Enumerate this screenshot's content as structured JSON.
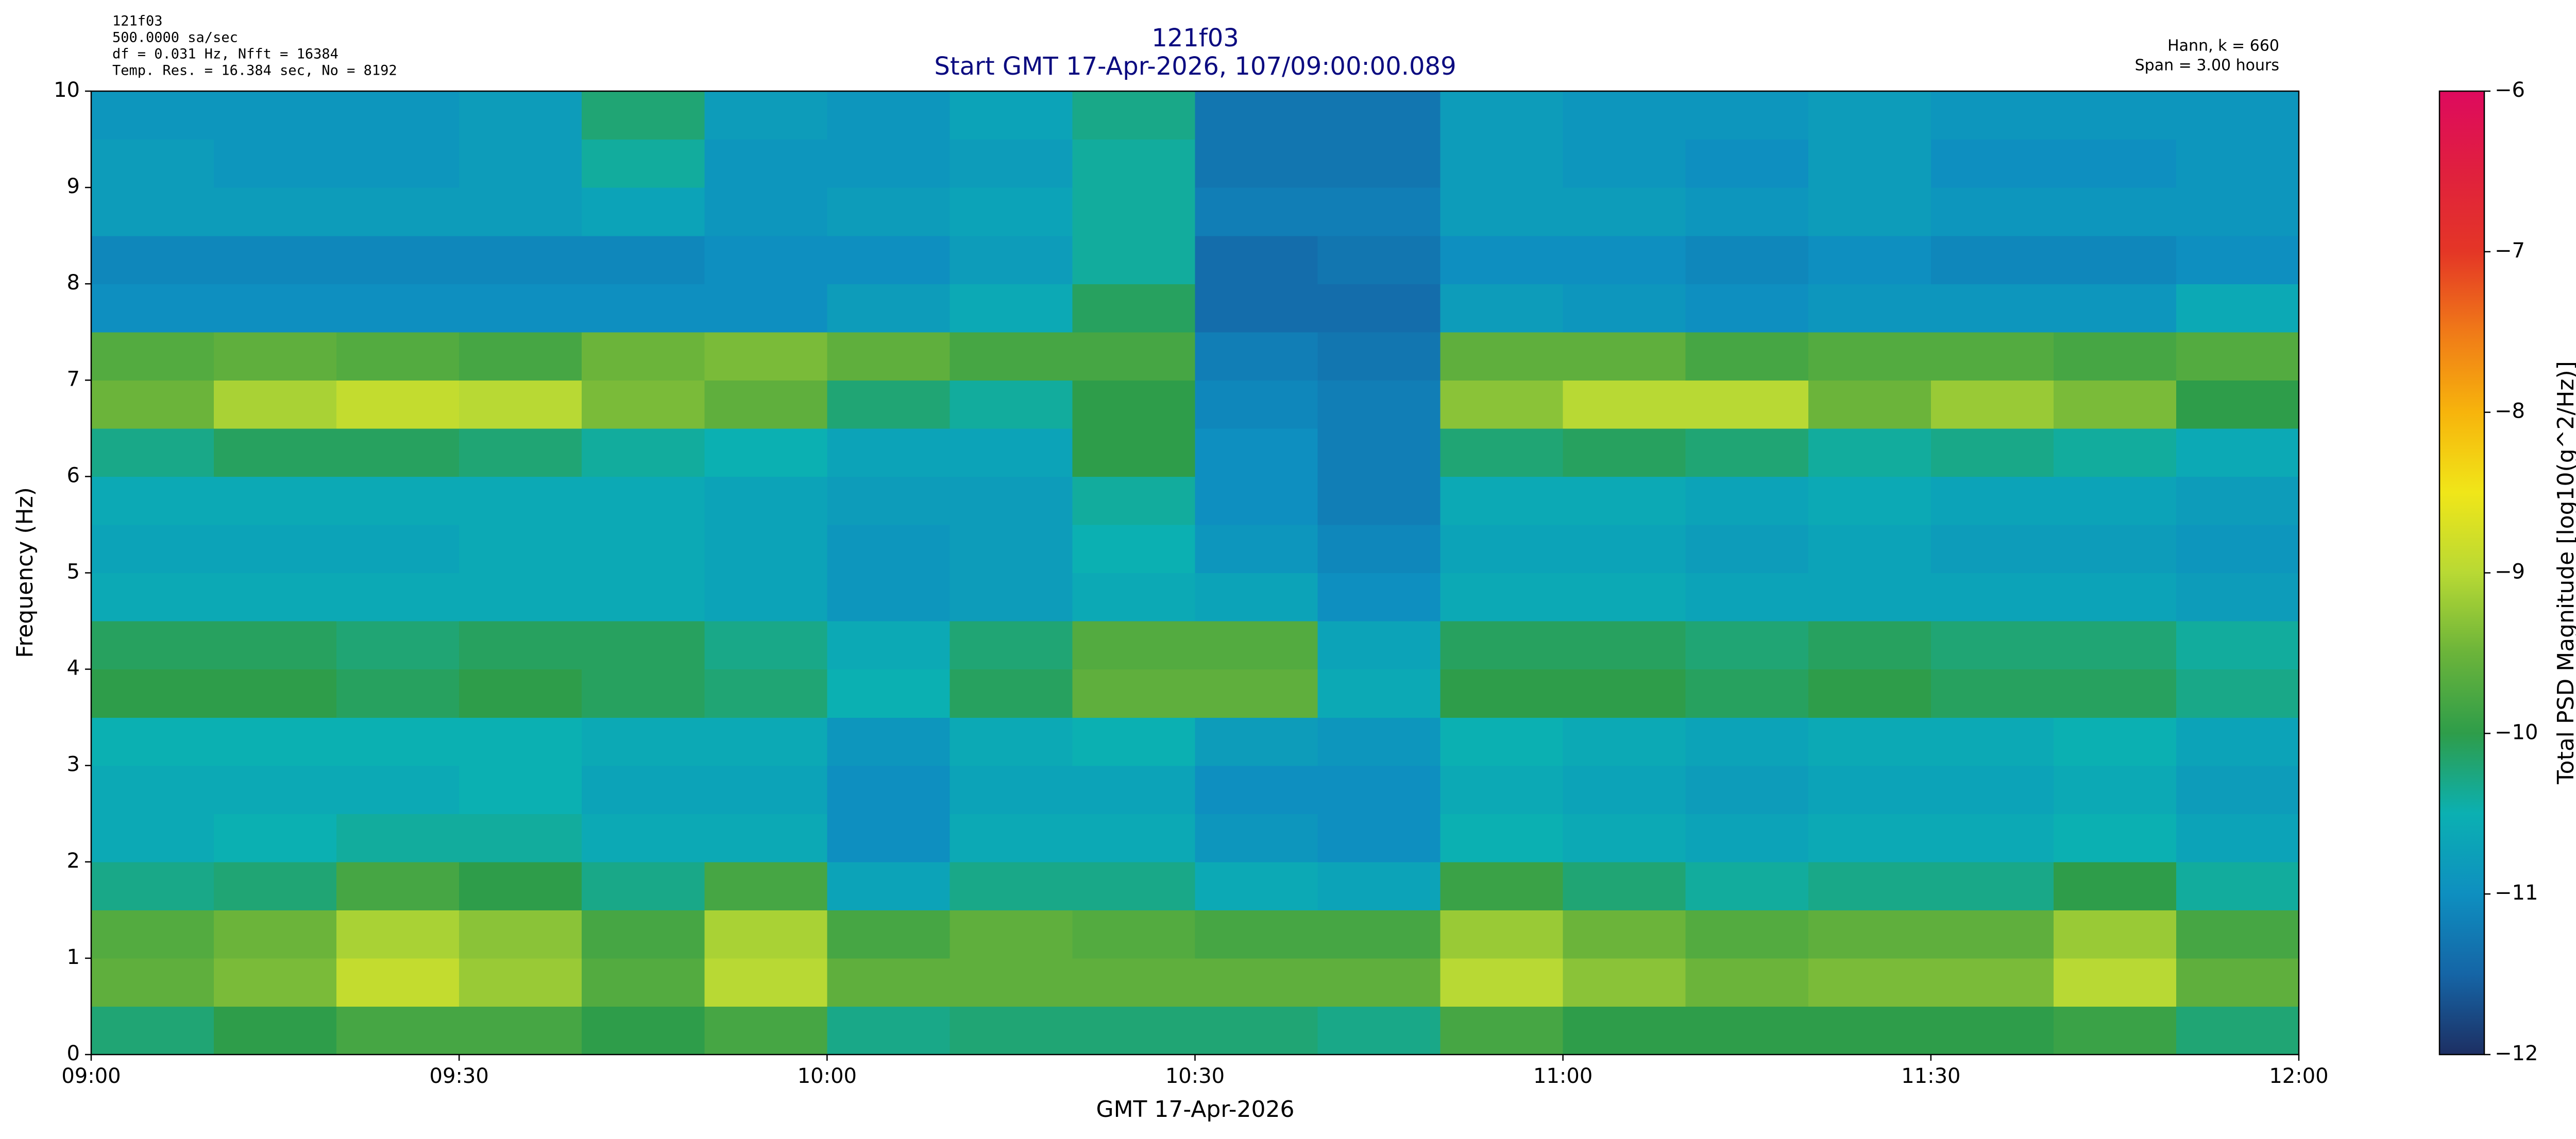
{
  "chart_data": {
    "type": "heatmap",
    "title": "121f03",
    "subtitle": "Start GMT 17-Apr-2026, 107/09:00:00.089",
    "header_left": [
      "121f03",
      "500.0000 sa/sec",
      "df = 0.031 Hz,  Nfft = 16384",
      "Temp. Res. = 16.384 sec, No = 8192"
    ],
    "header_right": [
      "Hann, k = 660",
      "Span = 3.00 hours"
    ],
    "x_label": "GMT 17-Apr-2026",
    "y_label": "Frequency (Hz)",
    "colorbar_label": "Total PSD Magnitude [log10(g^2/Hz)]",
    "xlim": [
      "09:00",
      "12:00"
    ],
    "xticks": [
      "09:00",
      "09:30",
      "10:00",
      "10:30",
      "11:00",
      "11:30",
      "12:00"
    ],
    "ylim": [
      0,
      10
    ],
    "yticks": [
      0,
      1,
      2,
      3,
      4,
      5,
      6,
      7,
      8,
      9,
      10
    ],
    "x_bins": [
      "09:00",
      "09:10",
      "09:20",
      "09:30",
      "09:40",
      "09:50",
      "10:00",
      "10:10",
      "10:20",
      "10:30",
      "10:40",
      "10:50",
      "11:00",
      "11:10",
      "11:20",
      "11:30",
      "11:40",
      "11:50",
      "12:00"
    ],
    "y_bins": [
      0,
      0.5,
      1,
      1.5,
      2,
      2.5,
      3,
      3.5,
      4,
      4.5,
      5,
      5.5,
      6,
      6.5,
      7,
      7.5,
      8,
      8.5,
      9,
      9.5,
      10
    ],
    "values": [
      [
        -10.2,
        -10,
        -9.8,
        -9.8,
        -10,
        -9.8,
        -10.3,
        -10.2,
        -10.2,
        -10.2,
        -10.3,
        -9.8,
        -10,
        -10,
        -10,
        -10,
        -9.9,
        -10.2
      ],
      [
        -9.6,
        -9.4,
        -8.9,
        -9.2,
        -9.7,
        -9.0,
        -9.6,
        -9.6,
        -9.6,
        -9.6,
        -9.6,
        -9.0,
        -9.3,
        -9.5,
        -9.4,
        -9.4,
        -9.0,
        -9.6
      ],
      [
        -9.7,
        -9.5,
        -9.1,
        -9.3,
        -9.8,
        -9.1,
        -9.8,
        -9.6,
        -9.7,
        -9.8,
        -9.8,
        -9.2,
        -9.5,
        -9.7,
        -9.6,
        -9.6,
        -9.2,
        -9.8
      ],
      [
        -10.3,
        -10.2,
        -9.8,
        -10,
        -10.3,
        -9.8,
        -10.7,
        -10.3,
        -10.3,
        -10.6,
        -10.7,
        -9.9,
        -10.2,
        -10.4,
        -10.3,
        -10.3,
        -10,
        -10.4
      ],
      [
        -10.6,
        -10.5,
        -10.4,
        -10.4,
        -10.6,
        -10.6,
        -11,
        -10.6,
        -10.6,
        -10.9,
        -11,
        -10.5,
        -10.6,
        -10.7,
        -10.6,
        -10.6,
        -10.5,
        -10.7
      ],
      [
        -10.6,
        -10.6,
        -10.6,
        -10.5,
        -10.7,
        -10.7,
        -11,
        -10.7,
        -10.7,
        -11,
        -11,
        -10.6,
        -10.7,
        -10.8,
        -10.7,
        -10.7,
        -10.6,
        -10.8
      ],
      [
        -10.5,
        -10.5,
        -10.5,
        -10.5,
        -10.6,
        -10.6,
        -10.9,
        -10.6,
        -10.5,
        -10.8,
        -10.9,
        -10.5,
        -10.6,
        -10.7,
        -10.6,
        -10.6,
        -10.5,
        -10.7
      ],
      [
        -10,
        -10,
        -10.1,
        -10,
        -10.1,
        -10.2,
        -10.5,
        -10.1,
        -9.6,
        -9.6,
        -10.6,
        -10,
        -10,
        -10.1,
        -10,
        -10.1,
        -10.1,
        -10.3
      ],
      [
        -10.1,
        -10.1,
        -10.2,
        -10.1,
        -10.1,
        -10.3,
        -10.6,
        -10.2,
        -9.7,
        -9.7,
        -10.7,
        -10.1,
        -10.1,
        -10.2,
        -10.1,
        -10.2,
        -10.2,
        -10.4
      ],
      [
        -10.6,
        -10.6,
        -10.6,
        -10.6,
        -10.6,
        -10.7,
        -10.9,
        -10.8,
        -10.6,
        -10.7,
        -11,
        -10.6,
        -10.6,
        -10.7,
        -10.7,
        -10.7,
        -10.7,
        -10.8
      ],
      [
        -10.7,
        -10.7,
        -10.7,
        -10.6,
        -10.6,
        -10.7,
        -10.9,
        -10.8,
        -10.5,
        -10.9,
        -11.1,
        -10.7,
        -10.7,
        -10.8,
        -10.7,
        -10.8,
        -10.8,
        -10.9
      ],
      [
        -10.6,
        -10.6,
        -10.6,
        -10.6,
        -10.6,
        -10.7,
        -10.8,
        -10.8,
        -10.4,
        -11,
        -11.2,
        -10.6,
        -10.6,
        -10.7,
        -10.6,
        -10.7,
        -10.7,
        -10.8
      ],
      [
        -10.3,
        -10.1,
        -10.1,
        -10.2,
        -10.4,
        -10.5,
        -10.7,
        -10.7,
        -10,
        -11,
        -11.2,
        -10.2,
        -10.1,
        -10.2,
        -10.4,
        -10.3,
        -10.4,
        -10.6
      ],
      [
        -9.5,
        -9.1,
        -8.9,
        -9.0,
        -9.4,
        -9.6,
        -10.2,
        -10.4,
        -10,
        -11.1,
        -11.2,
        -9.3,
        -9.0,
        -9.0,
        -9.5,
        -9.2,
        -9.4,
        -10
      ],
      [
        -9.7,
        -9.6,
        -9.7,
        -9.8,
        -9.5,
        -9.4,
        -9.6,
        -9.8,
        -9.8,
        -11.2,
        -11.3,
        -9.6,
        -9.6,
        -9.8,
        -9.7,
        -9.7,
        -9.8,
        -9.7
      ],
      [
        -11,
        -11,
        -11,
        -11,
        -11,
        -11,
        -10.8,
        -10.6,
        -10.1,
        -11.4,
        -11.4,
        -10.8,
        -10.9,
        -11,
        -10.9,
        -10.9,
        -10.9,
        -10.6
      ],
      [
        -11.1,
        -11.1,
        -11.1,
        -11.1,
        -11.1,
        -11,
        -11,
        -10.8,
        -10.4,
        -11.4,
        -11.3,
        -11,
        -11,
        -11.1,
        -11,
        -11.1,
        -11.1,
        -11
      ],
      [
        -10.8,
        -10.8,
        -10.8,
        -10.8,
        -10.7,
        -10.9,
        -10.8,
        -10.7,
        -10.4,
        -11.2,
        -11.2,
        -10.8,
        -10.8,
        -10.9,
        -10.8,
        -10.9,
        -10.9,
        -10.9
      ],
      [
        -10.8,
        -10.9,
        -10.9,
        -10.8,
        -10.4,
        -10.9,
        -10.9,
        -10.8,
        -10.4,
        -11.3,
        -11.3,
        -10.8,
        -10.9,
        -11,
        -10.8,
        -11,
        -11,
        -10.9
      ],
      [
        -10.9,
        -10.9,
        -10.9,
        -10.8,
        -10.2,
        -10.8,
        -10.9,
        -10.7,
        -10.3,
        -11.3,
        -11.3,
        -10.8,
        -10.9,
        -10.9,
        -10.8,
        -10.9,
        -10.9,
        -10.9
      ]
    ],
    "clim": [
      -12,
      -6
    ],
    "cticks": [
      {
        "value": -12,
        "label": "−12"
      },
      {
        "value": -11,
        "label": "−11"
      },
      {
        "value": -10,
        "label": "−10"
      },
      {
        "value": -9,
        "label": "−9"
      },
      {
        "value": -8,
        "label": "−8"
      },
      {
        "value": -7,
        "label": "−7"
      },
      {
        "value": -6,
        "label": "−6"
      }
    ],
    "colormap": [
      "#1d2f63",
      "#1565a6",
      "#0e8fc0",
      "#0bb0b2",
      "#2e9d4a",
      "#6bb43a",
      "#b8d934",
      "#f0e619",
      "#f7b40c",
      "#f07a18",
      "#e43626",
      "#e0203e",
      "#de0a5e"
    ]
  }
}
